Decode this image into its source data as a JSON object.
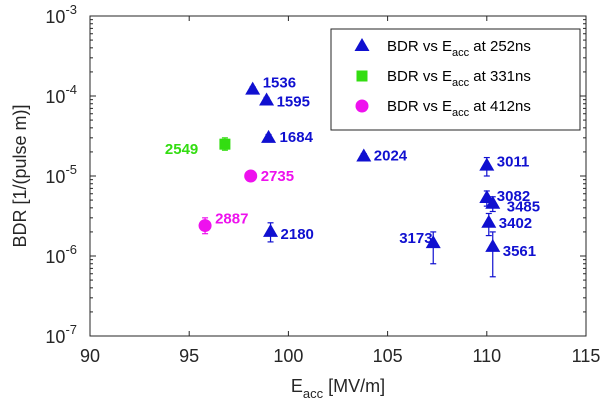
{
  "chart_data": {
    "type": "scatter",
    "xlabel": "E",
    "xlabel_sub": "acc",
    "xlabel_unit": " [MV/m]",
    "ylabel": "BDR [1/(pulse m)]",
    "xlim": [
      90,
      115
    ],
    "ylim": [
      1e-07,
      0.001
    ],
    "yscale": "log",
    "grid": false,
    "legend_position": "top-right",
    "x_ticks": [
      "90",
      "95",
      "100",
      "105",
      "110",
      "115"
    ],
    "y_ticks": [
      {
        "base": "10",
        "exp": "-7"
      },
      {
        "base": "10",
        "exp": "-6"
      },
      {
        "base": "10",
        "exp": "-5"
      },
      {
        "base": "10",
        "exp": "-4"
      },
      {
        "base": "10",
        "exp": "-3"
      }
    ],
    "series": [
      {
        "name": "BDR vs E",
        "name_sub": "acc",
        "name_suffix": " at 252ns",
        "marker": "triangle",
        "color": "#1010d0",
        "points": [
          {
            "x": 98.2,
            "y": 0.00012,
            "label": "1536",
            "err": [
              0.00011,
              0.00013
            ]
          },
          {
            "x": 98.9,
            "y": 8.8e-05,
            "label": "1595",
            "err": [
              8.2e-05,
              9.6e-05
            ]
          },
          {
            "x": 99.0,
            "y": 3e-05,
            "label": "1684",
            "err": [
              2.7e-05,
              3.3e-05
            ]
          },
          {
            "x": 103.8,
            "y": 1.75e-05,
            "label": "2024",
            "err": [
              1.6e-05,
              1.9e-05
            ]
          },
          {
            "x": 99.1,
            "y": 2e-06,
            "label": "2180",
            "err": [
              1.5e-06,
              2.6e-06
            ]
          },
          {
            "x": 110.0,
            "y": 1.35e-05,
            "label": "3011",
            "err": [
              1e-05,
              1.7e-05
            ]
          },
          {
            "x": 110.0,
            "y": 5.3e-06,
            "label": "3082",
            "err": [
              4.2e-06,
              6.5e-06
            ]
          },
          {
            "x": 110.3,
            "y": 4.5e-06,
            "label": "3485",
            "err": [
              3.6e-06,
              5.5e-06
            ]
          },
          {
            "x": 110.1,
            "y": 2.6e-06,
            "label": "3402",
            "err": [
              1.8e-06,
              3.4e-06
            ]
          },
          {
            "x": 107.3,
            "y": 1.45e-06,
            "label": "3173",
            "err": [
              8e-07,
              2e-06
            ]
          },
          {
            "x": 110.3,
            "y": 1.3e-06,
            "label": "3561",
            "err": [
              5.5e-07,
              2e-06
            ]
          }
        ]
      },
      {
        "name": "BDR vs E",
        "name_sub": "acc",
        "name_suffix": " at 331ns",
        "marker": "square",
        "color": "#33dd11",
        "points": [
          {
            "x": 96.8,
            "y": 2.5e-05,
            "label": "2549",
            "err": [
              2.1e-05,
              3e-05
            ]
          }
        ]
      },
      {
        "name": "BDR vs E",
        "name_sub": "acc",
        "name_suffix": " at 412ns",
        "marker": "circle",
        "color": "#ee11ee",
        "points": [
          {
            "x": 98.1,
            "y": 1e-05,
            "label": "2735",
            "err": [
              9.3e-06,
              1.07e-05
            ]
          },
          {
            "x": 95.8,
            "y": 2.4e-06,
            "label": "2887",
            "err": [
              1.9e-06,
              3e-06
            ]
          }
        ]
      }
    ]
  }
}
